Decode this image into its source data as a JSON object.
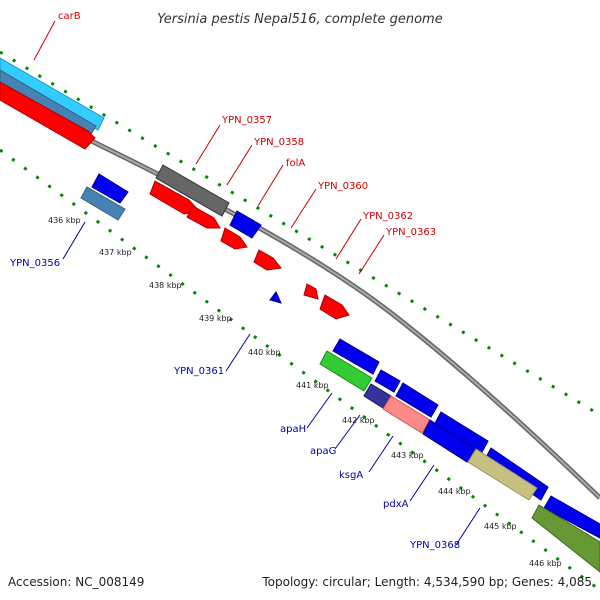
{
  "header": {
    "title": "Yersinia pestis Nepal516, complete genome"
  },
  "footer": {
    "accession": "Accession: NC_008149",
    "summary": "Topology: circular; Length: 4,534,590 bp; Genes: 4,085"
  },
  "colors": {
    "forward_cds": "#ff0000",
    "reverse_cds": "#0000ee",
    "forward_label": "#cc0000",
    "reverse_label": "#0000aa",
    "backbone": "#808080",
    "tick_dots": "#008800",
    "carB_blue": "#33ccff",
    "carB_steel": "#4682b4",
    "ypn0357_gray": "#666666",
    "apaH_green": "#33cc33",
    "apaG_purple": "#333399",
    "ksgA_pink": "#ff8888",
    "pdxA_khaki": "#c8c080",
    "ypn0368_olive": "#669933"
  },
  "genes_forward": [
    "carB",
    "YPN_0357",
    "YPN_0358",
    "folA",
    "YPN_0360",
    "YPN_0362",
    "YPN_0363"
  ],
  "genes_reverse": [
    "YPN_0356",
    "YPN_0361",
    "apaH",
    "apaG",
    "ksgA",
    "pdxA",
    "YPN_0368"
  ],
  "tick_labels": [
    "436 kbp",
    "437 kbp",
    "438 kbp",
    "439 kbp",
    "440 kbp",
    "441 kbp",
    "442 kbp",
    "443 kbp",
    "444 kbp",
    "445 kbp",
    "446 kbp"
  ]
}
